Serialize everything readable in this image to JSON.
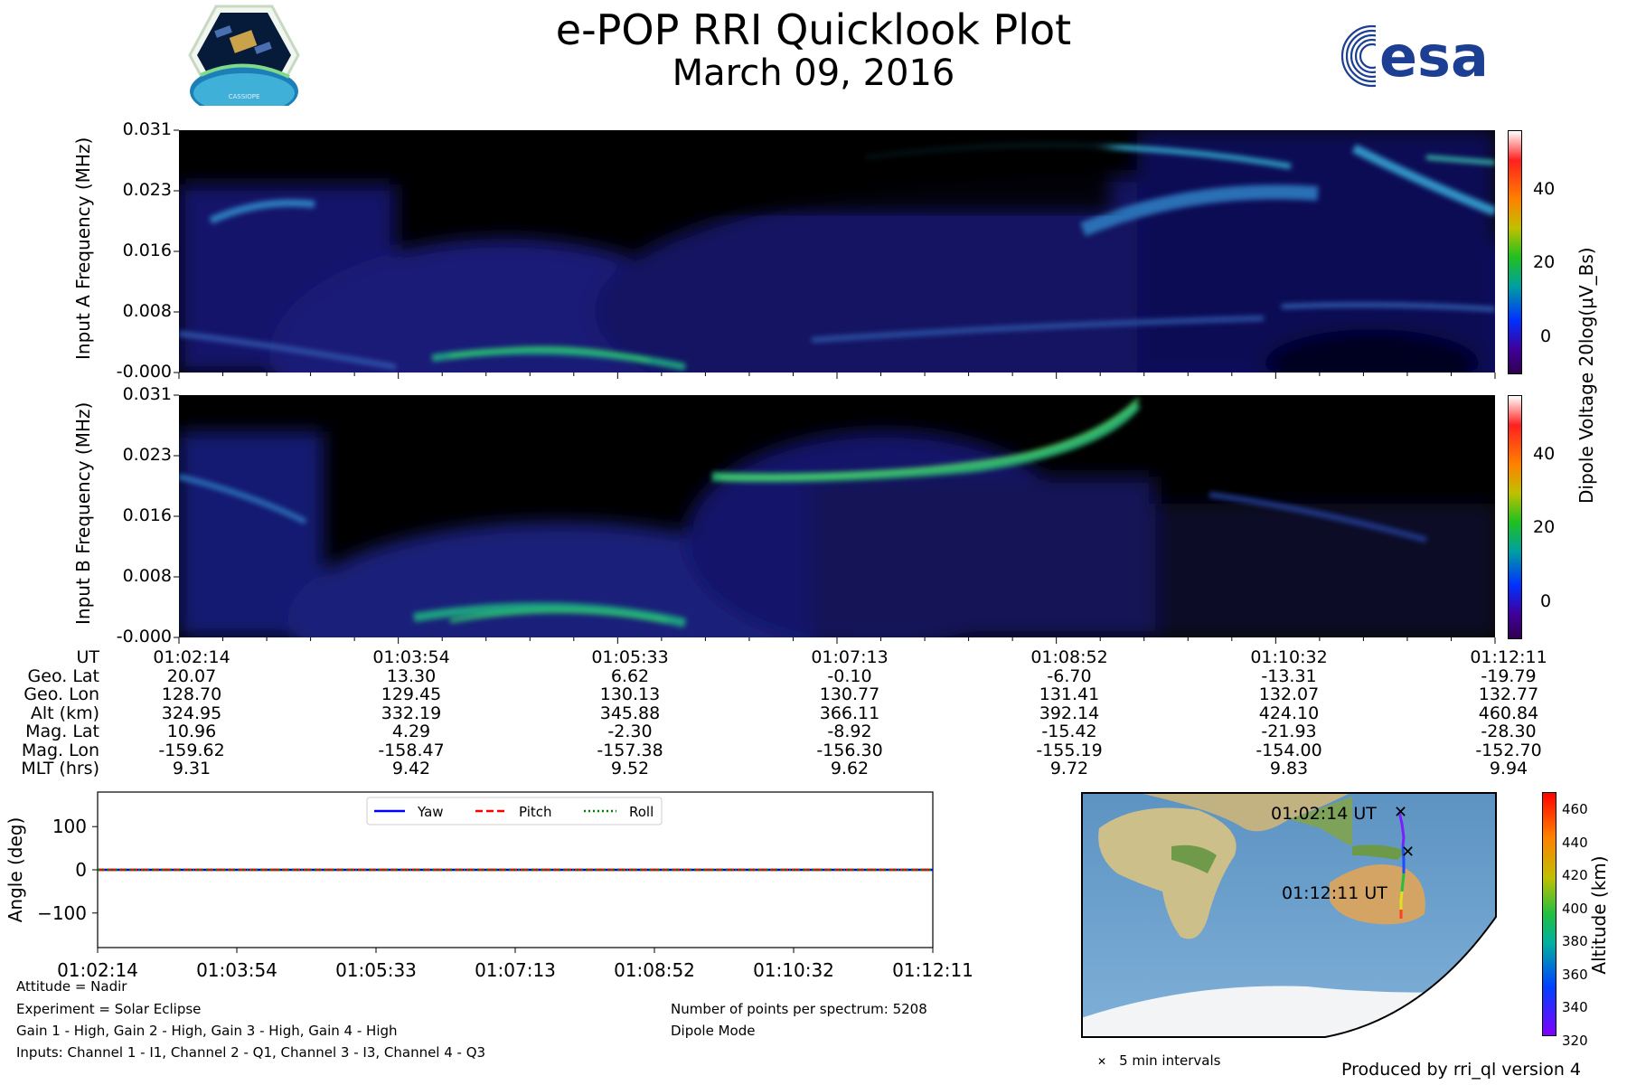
{
  "header": {
    "title": "e-POP RRI Quicklook Plot",
    "date": "March 09, 2016",
    "cassiope_badge": "CASSIOPE",
    "esa_logo": "esa"
  },
  "spectrogram": {
    "y_ticks": [
      "0.031",
      "0.023",
      "0.016",
      "0.008",
      "-0.000"
    ],
    "panel_a_ylabel": "Input A Frequency (MHz)",
    "panel_b_ylabel": "Input B Frequency (MHz)",
    "colorbar_label": "Dipole Voltage 20log(μV_Bs)",
    "colorbar_ticks": [
      "40",
      "20",
      "0"
    ],
    "colors": {
      "background": "#000000",
      "low": "#1a1a8c",
      "mid": "#00b050",
      "high": "#ffffff"
    }
  },
  "ephemeris": {
    "row_labels": [
      "UT",
      "Geo. Lat",
      "Geo. Lon",
      "Alt (km)",
      "Mag. Lat",
      "Mag. Lon",
      "MLT (hrs)"
    ],
    "columns": [
      [
        "01:02:14",
        "20.07",
        "128.70",
        "324.95",
        "10.96",
        "-159.62",
        "9.31"
      ],
      [
        "01:03:54",
        "13.30",
        "129.45",
        "332.19",
        "4.29",
        "-158.47",
        "9.42"
      ],
      [
        "01:05:33",
        "6.62",
        "130.13",
        "345.88",
        "-2.30",
        "-157.38",
        "9.52"
      ],
      [
        "01:07:13",
        "-0.10",
        "130.77",
        "366.11",
        "-8.92",
        "-156.30",
        "9.62"
      ],
      [
        "01:08:52",
        "-6.70",
        "131.41",
        "392.14",
        "-15.42",
        "-155.19",
        "9.72"
      ],
      [
        "01:10:32",
        "-13.31",
        "132.07",
        "424.10",
        "-21.93",
        "-154.00",
        "9.83"
      ],
      [
        "01:12:11",
        "-19.79",
        "132.77",
        "460.84",
        "-28.30",
        "-152.70",
        "9.94"
      ]
    ]
  },
  "attitude": {
    "ylabel": "Angle (deg)",
    "y_ticks": [
      "100",
      "0",
      "−100"
    ],
    "x_ticks": [
      "01:02:14",
      "01:03:54",
      "01:05:33",
      "01:07:13",
      "01:08:52",
      "01:10:32",
      "01:12:11"
    ],
    "legend": [
      "Yaw",
      "Pitch",
      "Roll"
    ]
  },
  "chart_data": [
    {
      "type": "heatmap",
      "title": "e-POP RRI Quicklook Plot",
      "ylabel": "Input A Frequency (MHz)",
      "y_ticks": [
        "0.031",
        "0.023",
        "0.016",
        "0.008",
        "-0.000"
      ],
      "ylim": [
        0,
        0.031
      ],
      "x_ticks": [
        "01:02:14",
        "01:03:54",
        "01:05:33",
        "01:07:13",
        "01:08:52",
        "01:10:32",
        "01:12:11"
      ],
      "colorbar": {
        "label": "Dipole Voltage 20log(μV_Bs)",
        "range": [
          -10,
          55
        ],
        "ticks": [
          40,
          20,
          0
        ]
      }
    },
    {
      "type": "heatmap",
      "ylabel": "Input B Frequency (MHz)",
      "y_ticks": [
        "0.031",
        "0.023",
        "0.016",
        "0.008",
        "-0.000"
      ],
      "ylim": [
        0,
        0.031
      ],
      "x_ticks": [
        "01:02:14",
        "01:03:54",
        "01:05:33",
        "01:07:13",
        "01:08:52",
        "01:10:32",
        "01:12:11"
      ],
      "colorbar": {
        "label": "Dipole Voltage 20log(μV_Bs)",
        "range": [
          -10,
          55
        ],
        "ticks": [
          40,
          20,
          0
        ]
      }
    },
    {
      "type": "line",
      "ylabel": "Angle (deg)",
      "ylim": [
        -180,
        180
      ],
      "x": [
        "01:02:14",
        "01:03:54",
        "01:05:33",
        "01:07:13",
        "01:08:52",
        "01:10:32",
        "01:12:11"
      ],
      "series": [
        {
          "name": "Yaw",
          "values": [
            0,
            0,
            0,
            0,
            0,
            0,
            0
          ],
          "color": "#0000ff",
          "style": "solid"
        },
        {
          "name": "Pitch",
          "values": [
            0,
            0,
            0,
            0,
            0,
            0,
            0
          ],
          "color": "#ff0000",
          "style": "dashed"
        },
        {
          "name": "Roll",
          "values": [
            0,
            0,
            0,
            0,
            0,
            0,
            0
          ],
          "color": "#008000",
          "style": "dotted"
        }
      ],
      "legend": "top-center"
    },
    {
      "type": "scatter",
      "ylabel": "Altitude (km)",
      "colorbar_ticks": [
        460,
        440,
        420,
        400,
        380,
        360,
        340,
        320
      ],
      "annotations": [
        "01:02:14 UT",
        "01:12:11 UT"
      ],
      "legend": "5 min intervals"
    }
  ],
  "map": {
    "start_label": "01:02:14 UT",
    "end_label": "01:12:11 UT",
    "colorbar_label": "Altitude (km)",
    "colorbar_ticks": [
      "460",
      "440",
      "420",
      "400",
      "380",
      "360",
      "340",
      "320"
    ],
    "legend_text": "5 min intervals"
  },
  "notes": {
    "attitude": "Attitude = Nadir",
    "experiment": "Experiment = Solar Eclipse",
    "gain": "Gain 1 - High, Gain 2 - High, Gain 3 - High, Gain 4 - High",
    "inputs": "Inputs: Channel 1 - I1, Channel 2 - Q1, Channel 3 - I3, Channel 4 - Q3",
    "points": "Number of points per spectrum: 5208",
    "mode": "Dipole Mode",
    "produced_by": "Produced by rri_ql version 4"
  }
}
